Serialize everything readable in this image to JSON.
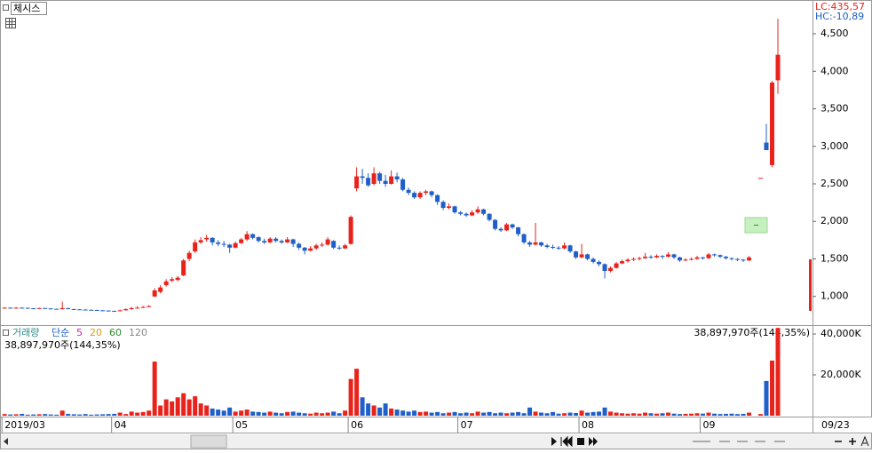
{
  "chart_data": [
    {
      "type": "candlestick",
      "title": "체시스",
      "annotations": [
        "LC:435,57",
        "HC:-10,89"
      ],
      "up_color": "#e8231b",
      "down_color": "#1f5fc9",
      "x": [
        0,
        1,
        2,
        3,
        4,
        5,
        6,
        7,
        8,
        9,
        10,
        11,
        12,
        13,
        14,
        15,
        16,
        17,
        18,
        19,
        20,
        21,
        22,
        23,
        24,
        25,
        26,
        27,
        28,
        29,
        30,
        31,
        32,
        33,
        34,
        35,
        36,
        37,
        38,
        39,
        40,
        41,
        42,
        43,
        44,
        45,
        46,
        47,
        48,
        49,
        50,
        51,
        52,
        53,
        54,
        55,
        56,
        57,
        58,
        59,
        60,
        61,
        62,
        63,
        64,
        65,
        66,
        67,
        68,
        69,
        70,
        71,
        72,
        73,
        74,
        75,
        76,
        77,
        78,
        79,
        80,
        81,
        82,
        83,
        84,
        85,
        86,
        87,
        88,
        89,
        90,
        91,
        92,
        93,
        94,
        95,
        96,
        97,
        98,
        99,
        100,
        101,
        102,
        103,
        104,
        105,
        106,
        107,
        108,
        109,
        110,
        111,
        112,
        113,
        114,
        115,
        116,
        117,
        118,
        119,
        120,
        121,
        122,
        123,
        124,
        125,
        126,
        127,
        128,
        129,
        131,
        132,
        133,
        134
      ],
      "values": [
        [
          850,
          858,
          842,
          850
        ],
        [
          850,
          855,
          840,
          845
        ],
        [
          845,
          858,
          842,
          850
        ],
        [
          850,
          855,
          842,
          848
        ],
        [
          848,
          850,
          835,
          842
        ],
        [
          842,
          845,
          832,
          838
        ],
        [
          838,
          850,
          835,
          845
        ],
        [
          845,
          848,
          835,
          840
        ],
        [
          840,
          842,
          830,
          835
        ],
        [
          835,
          838,
          825,
          830
        ],
        [
          830,
          930,
          828,
          845
        ],
        [
          845,
          848,
          828,
          832
        ],
        [
          832,
          835,
          822,
          828
        ],
        [
          828,
          832,
          820,
          825
        ],
        [
          825,
          828,
          815,
          822
        ],
        [
          822,
          826,
          815,
          820
        ],
        [
          820,
          822,
          810,
          815
        ],
        [
          815,
          820,
          808,
          812
        ],
        [
          812,
          815,
          800,
          808
        ],
        [
          808,
          812,
          798,
          805
        ],
        [
          805,
          825,
          802,
          815
        ],
        [
          815,
          840,
          812,
          830
        ],
        [
          830,
          860,
          825,
          845
        ],
        [
          845,
          870,
          838,
          850
        ],
        [
          850,
          872,
          845,
          860
        ],
        [
          860,
          885,
          855,
          870
        ],
        [
          1000,
          1110,
          990,
          1080
        ],
        [
          1060,
          1150,
          1040,
          1120
        ],
        [
          1150,
          1230,
          1130,
          1200
        ],
        [
          1210,
          1260,
          1190,
          1230
        ],
        [
          1220,
          1270,
          1200,
          1250
        ],
        [
          1280,
          1500,
          1270,
          1480
        ],
        [
          1500,
          1610,
          1470,
          1580
        ],
        [
          1600,
          1760,
          1580,
          1720
        ],
        [
          1720,
          1790,
          1700,
          1750
        ],
        [
          1760,
          1820,
          1730,
          1780
        ],
        [
          1780,
          1790,
          1680,
          1720
        ],
        [
          1720,
          1750,
          1670,
          1700
        ],
        [
          1700,
          1740,
          1660,
          1690
        ],
        [
          1690,
          1700,
          1580,
          1650
        ],
        [
          1650,
          1730,
          1640,
          1710
        ],
        [
          1710,
          1780,
          1700,
          1760
        ],
        [
          1760,
          1870,
          1740,
          1830
        ],
        [
          1830,
          1840,
          1760,
          1780
        ],
        [
          1790,
          1800,
          1720,
          1740
        ],
        [
          1740,
          1770,
          1700,
          1720
        ],
        [
          1720,
          1790,
          1710,
          1770
        ],
        [
          1770,
          1790,
          1720,
          1740
        ],
        [
          1740,
          1760,
          1700,
          1720
        ],
        [
          1720,
          1790,
          1710,
          1760
        ],
        [
          1760,
          1770,
          1660,
          1700
        ],
        [
          1700,
          1720,
          1620,
          1650
        ],
        [
          1650,
          1660,
          1560,
          1610
        ],
        [
          1610,
          1670,
          1600,
          1640
        ],
        [
          1640,
          1700,
          1620,
          1680
        ],
        [
          1680,
          1720,
          1660,
          1690
        ],
        [
          1690,
          1790,
          1680,
          1760
        ],
        [
          1740,
          1750,
          1630,
          1650
        ],
        [
          1650,
          1680,
          1620,
          1640
        ],
        [
          1640,
          1700,
          1630,
          1680
        ],
        [
          1700,
          2080,
          1690,
          2060
        ],
        [
          2440,
          2720,
          2400,
          2600
        ],
        [
          2600,
          2700,
          2500,
          2580
        ],
        [
          2580,
          2640,
          2460,
          2480
        ],
        [
          2500,
          2720,
          2480,
          2640
        ],
        [
          2640,
          2660,
          2500,
          2540
        ],
        [
          2540,
          2620,
          2460,
          2500
        ],
        [
          2500,
          2680,
          2490,
          2600
        ],
        [
          2600,
          2650,
          2520,
          2560
        ],
        [
          2560,
          2580,
          2400,
          2420
        ],
        [
          2420,
          2450,
          2350,
          2380
        ],
        [
          2380,
          2400,
          2300,
          2320
        ],
        [
          2320,
          2400,
          2300,
          2380
        ],
        [
          2380,
          2420,
          2350,
          2400
        ],
        [
          2400,
          2410,
          2320,
          2350
        ],
        [
          2350,
          2360,
          2220,
          2260
        ],
        [
          2260,
          2280,
          2150,
          2180
        ],
        [
          2180,
          2240,
          2160,
          2200
        ],
        [
          2200,
          2210,
          2100,
          2120
        ],
        [
          2120,
          2140,
          2080,
          2100
        ],
        [
          2100,
          2120,
          2060,
          2080
        ],
        [
          2080,
          2150,
          2070,
          2120
        ],
        [
          2120,
          2200,
          2100,
          2160
        ],
        [
          2160,
          2170,
          2080,
          2100
        ],
        [
          2100,
          2110,
          2000,
          2020
        ],
        [
          2020,
          2030,
          1880,
          1900
        ],
        [
          1900,
          1920,
          1860,
          1880
        ],
        [
          1880,
          1980,
          1870,
          1960
        ],
        [
          1960,
          1970,
          1900,
          1920
        ],
        [
          1920,
          1930,
          1800,
          1830
        ],
        [
          1830,
          1840,
          1700,
          1720
        ],
        [
          1720,
          1740,
          1660,
          1690
        ],
        [
          1690,
          1980,
          1680,
          1720
        ],
        [
          1720,
          1730,
          1660,
          1680
        ],
        [
          1680,
          1700,
          1640,
          1660
        ],
        [
          1660,
          1690,
          1630,
          1650
        ],
        [
          1650,
          1670,
          1620,
          1640
        ],
        [
          1640,
          1720,
          1630,
          1680
        ],
        [
          1680,
          1690,
          1580,
          1600
        ],
        [
          1600,
          1610,
          1500,
          1520
        ],
        [
          1520,
          1700,
          1510,
          1560
        ],
        [
          1560,
          1570,
          1480,
          1500
        ],
        [
          1500,
          1520,
          1440,
          1460
        ],
        [
          1460,
          1480,
          1400,
          1430
        ],
        [
          1430,
          1440,
          1240,
          1340
        ],
        [
          1340,
          1400,
          1320,
          1380
        ],
        [
          1380,
          1460,
          1370,
          1440
        ],
        [
          1440,
          1490,
          1430,
          1470
        ],
        [
          1470,
          1510,
          1450,
          1490
        ],
        [
          1490,
          1520,
          1470,
          1500
        ],
        [
          1500,
          1530,
          1480,
          1510
        ],
        [
          1510,
          1580,
          1500,
          1530
        ],
        [
          1530,
          1550,
          1500,
          1520
        ],
        [
          1520,
          1560,
          1510,
          1540
        ],
        [
          1540,
          1550,
          1500,
          1530
        ],
        [
          1530,
          1590,
          1520,
          1560
        ],
        [
          1560,
          1570,
          1500,
          1520
        ],
        [
          1520,
          1530,
          1460,
          1480
        ],
        [
          1480,
          1510,
          1470,
          1490
        ],
        [
          1490,
          1520,
          1480,
          1500
        ],
        [
          1500,
          1540,
          1490,
          1520
        ],
        [
          1520,
          1530,
          1490,
          1510
        ],
        [
          1510,
          1580,
          1500,
          1560
        ],
        [
          1560,
          1570,
          1530,
          1550
        ],
        [
          1550,
          1560,
          1510,
          1530
        ],
        [
          1530,
          1540,
          1490,
          1510
        ],
        [
          1510,
          1520,
          1480,
          1500
        ],
        [
          1500,
          1510,
          1470,
          1490
        ],
        [
          1490,
          1500,
          1460,
          1480
        ],
        [
          1480,
          1540,
          1470,
          1520
        ],
        [
          2580,
          2580,
          2580,
          2580
        ],
        [
          3050,
          3300,
          2950,
          2950
        ],
        [
          2750,
          3870,
          2720,
          3850
        ],
        [
          3880,
          4700,
          3700,
          4220
        ]
      ],
      "xlim": [
        -0.8,
        140
      ],
      "ylim": [
        630,
        4950
      ],
      "yticks": [
        {
          "value": 1000,
          "label": "1,000"
        },
        {
          "value": 1500,
          "label": "1,500"
        },
        {
          "value": 2000,
          "label": "2,000"
        },
        {
          "value": 2500,
          "label": "2,500"
        },
        {
          "value": 3000,
          "label": "3,000"
        },
        {
          "value": 3500,
          "label": "3,500"
        },
        {
          "value": 4000,
          "label": "4,000"
        },
        {
          "value": 4500,
          "label": "4,500"
        }
      ]
    },
    {
      "type": "bar",
      "name": "거래량",
      "method": "단순",
      "ma_periods": [
        5,
        20,
        60,
        120
      ],
      "ma_colors": [
        "#d21fb4",
        "#d4a017",
        "#2e8b2e",
        "#888888"
      ],
      "info": "38,897,970주(144,35%)",
      "values": [
        800,
        600,
        700,
        900,
        500,
        600,
        700,
        800,
        600,
        500,
        2500,
        900,
        700,
        600,
        800,
        500,
        600,
        700,
        800,
        900,
        1500,
        800,
        2000,
        1500,
        1800,
        2500,
        26500,
        5000,
        8000,
        7000,
        9000,
        11000,
        8000,
        9500,
        6000,
        5000,
        3500,
        3000,
        2500,
        4000,
        2000,
        2500,
        3000,
        2000,
        1800,
        1500,
        2000,
        1500,
        1200,
        1800,
        2000,
        1500,
        1200,
        1000,
        1500,
        1200,
        1500,
        2000,
        1200,
        2500,
        18000,
        23000,
        9000,
        6000,
        5000,
        4000,
        6000,
        3500,
        3000,
        2500,
        2000,
        2500,
        1800,
        2000,
        1500,
        1800,
        1200,
        1500,
        1800,
        1200,
        1500,
        1200,
        2000,
        1500,
        1800,
        1200,
        1500,
        1200,
        1500,
        1800,
        1200,
        4000,
        2000,
        1500,
        1200,
        1800,
        1000,
        1200,
        1500,
        1300,
        2500,
        1500,
        1800,
        2000,
        4000,
        2000,
        1500,
        1200,
        1000,
        1200,
        1000,
        1500,
        1200,
        1000,
        1200,
        1500,
        1000,
        800,
        900,
        1000,
        1200,
        1000,
        1500,
        1000,
        800,
        900,
        1000,
        800,
        900,
        1500,
        800,
        17000,
        27000,
        43000
      ],
      "ylim": [
        0,
        43500
      ],
      "yticks": [
        {
          "value": 20000,
          "label": "20,000K"
        },
        {
          "value": 40000,
          "label": "40,000K"
        }
      ],
      "xticks": [
        {
          "value": 0,
          "label": "2019/03"
        },
        {
          "value": 19,
          "label": "04"
        },
        {
          "value": 40,
          "label": "05"
        },
        {
          "value": 60,
          "label": "06"
        },
        {
          "value": 79,
          "label": "07"
        },
        {
          "value": 100,
          "label": "08"
        },
        {
          "value": 121,
          "label": "09"
        }
      ],
      "crosshair_label": "09/23"
    }
  ]
}
